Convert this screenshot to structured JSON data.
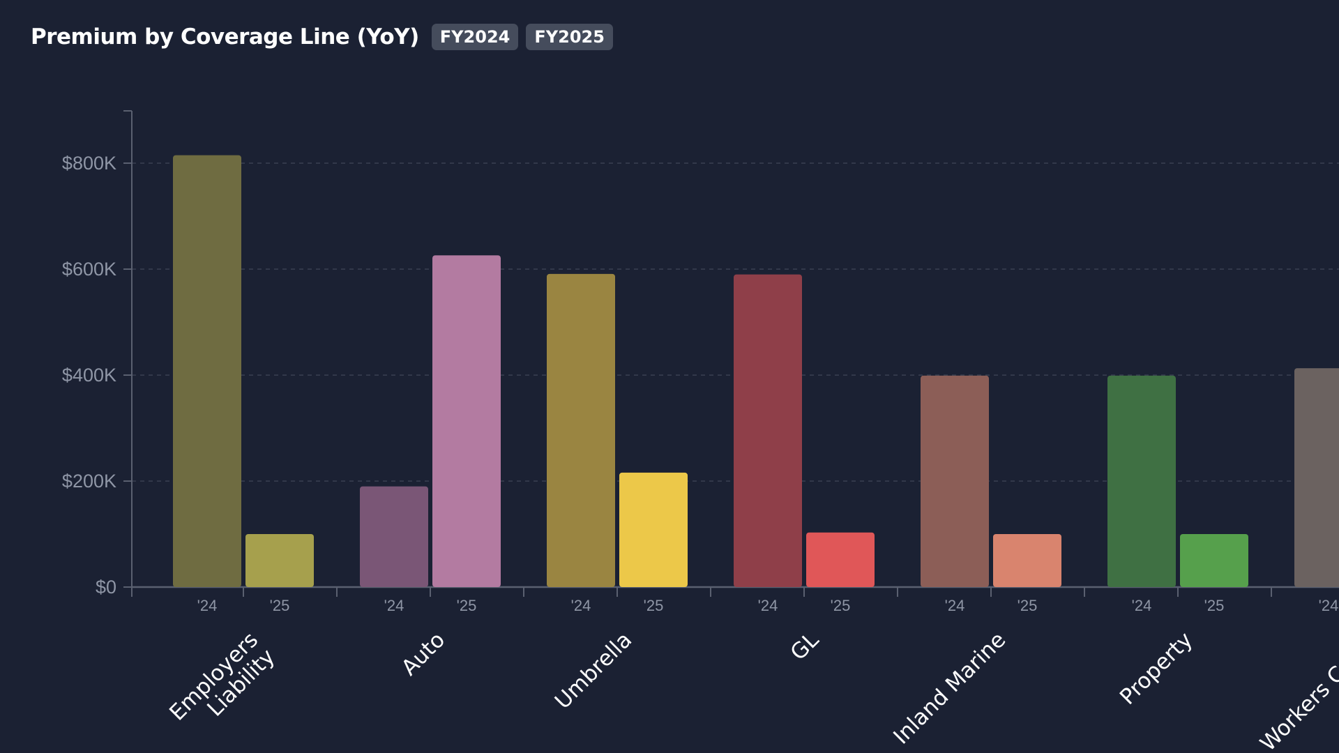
{
  "header": {
    "title": "Premium by Coverage Line (YoY)",
    "badges": [
      "FY2024",
      "FY2025"
    ]
  },
  "chart_data": {
    "type": "bar",
    "title": "Premium by Coverage Line (YoY)",
    "xlabel": "",
    "ylabel": "",
    "ylim": [
      0,
      900000
    ],
    "yticks": [
      {
        "value": 0,
        "label": "$0"
      },
      {
        "value": 200000,
        "label": "$200K"
      },
      {
        "value": 400000,
        "label": "$400K"
      },
      {
        "value": 600000,
        "label": "$600K"
      },
      {
        "value": 800000,
        "label": "$800K"
      }
    ],
    "grid": true,
    "sub_labels": [
      "'24",
      "'25"
    ],
    "categories": [
      {
        "lines": [
          "Employers",
          "Liability"
        ],
        "v24": 815000,
        "v25": 100000,
        "c24": "#6f6c41",
        "c25": "#a6a04d"
      },
      {
        "lines": [
          "Auto"
        ],
        "v24": 190000,
        "v25": 626000,
        "c24": "#7a5676",
        "c25": "#b37ba1"
      },
      {
        "lines": [
          "Umbrella"
        ],
        "v24": 591000,
        "v25": 216000,
        "c24": "#9a8541",
        "c25": "#ecc849"
      },
      {
        "lines": [
          "GL"
        ],
        "v24": 590000,
        "v25": 103000,
        "c24": "#8f3f49",
        "c25": "#e05758"
      },
      {
        "lines": [
          "Inland Marine"
        ],
        "v24": 399000,
        "v25": 100000,
        "c24": "#8c5e57",
        "c25": "#d9846e"
      },
      {
        "lines": [
          "Property"
        ],
        "v24": 399000,
        "v25": 100000,
        "c24": "#3f7043",
        "c25": "#56a04c"
      },
      {
        "lines": [
          "Workers Comp"
        ],
        "v24": 413000,
        "v25": null,
        "c24": "#6b6260",
        "c25": "#9a8f8b"
      }
    ]
  }
}
